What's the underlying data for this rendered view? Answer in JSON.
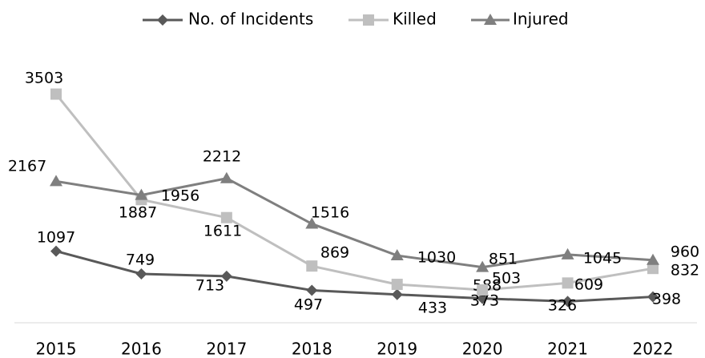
{
  "chart_data": {
    "type": "line",
    "categories": [
      "2015",
      "2016",
      "2017",
      "2018",
      "2019",
      "2020",
      "2021",
      "2022"
    ],
    "series": [
      {
        "name": "No. of Incidents",
        "color": "#595959",
        "marker": "diamond",
        "values": [
          1097,
          749,
          713,
          497,
          433,
          373,
          326,
          398
        ]
      },
      {
        "name": "Killed",
        "color": "#bfbfbf",
        "marker": "square",
        "values": [
          3503,
          1887,
          1611,
          869,
          588,
          503,
          609,
          832
        ]
      },
      {
        "name": "Injured",
        "color": "#7f7f7f",
        "marker": "triangle",
        "values": [
          2167,
          1956,
          2212,
          1516,
          1030,
          851,
          1045,
          960
        ]
      }
    ],
    "ylim": [
      0,
      4000
    ],
    "legend": "top"
  }
}
